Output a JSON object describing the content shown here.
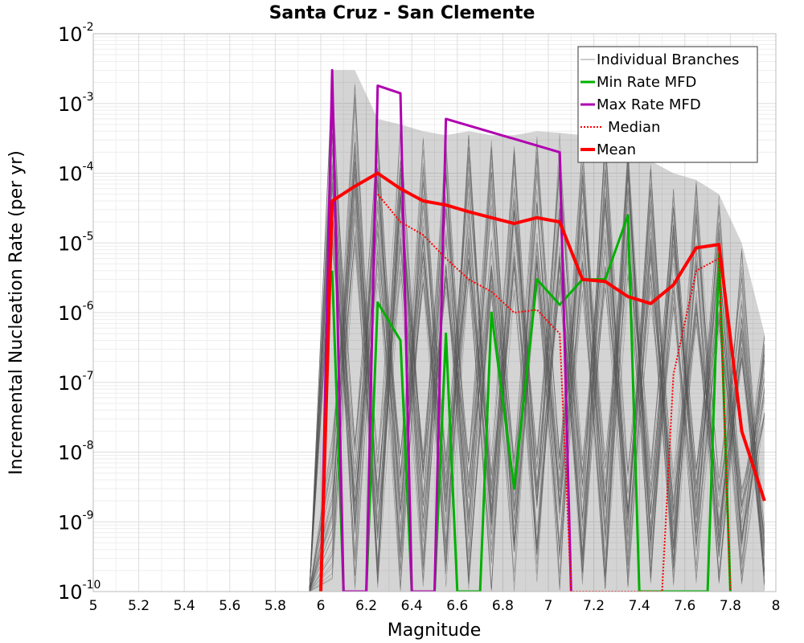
{
  "chart_data": {
    "type": "line",
    "title": "Santa Cruz - San Clemente",
    "xlabel": "Magnitude",
    "ylabel": "Incremental Nucleation Rate (per yr)",
    "xlim": [
      5,
      8
    ],
    "ylim": [
      1e-10,
      0.01
    ],
    "yscale": "log",
    "grid": true,
    "legend_position": "top-right",
    "x_ticks": [
      "5",
      "5.2",
      "5.4",
      "5.6",
      "5.8",
      "6",
      "6.2",
      "6.4",
      "6.6",
      "6.8",
      "7",
      "7.2",
      "7.4",
      "7.6",
      "7.8",
      "8"
    ],
    "y_ticks": [
      {
        "base": "10",
        "exp": "-10"
      },
      {
        "base": "10",
        "exp": "-9"
      },
      {
        "base": "10",
        "exp": "-8"
      },
      {
        "base": "10",
        "exp": "-7"
      },
      {
        "base": "10",
        "exp": "-6"
      },
      {
        "base": "10",
        "exp": "-5"
      },
      {
        "base": "10",
        "exp": "-4"
      },
      {
        "base": "10",
        "exp": "-3"
      },
      {
        "base": "10",
        "exp": "-2"
      }
    ],
    "series": [
      {
        "name": "Individual Branches",
        "color": "#555555",
        "style": "thin",
        "x": [
          5.95,
          6.05,
          6.15,
          6.25,
          6.35,
          6.45,
          6.55,
          6.65,
          6.75,
          6.85,
          6.95,
          7.05,
          7.15,
          7.25,
          7.35,
          7.45,
          7.55,
          7.65,
          7.75,
          7.85,
          7.95
        ],
        "y_min": [
          1e-10,
          1e-10,
          1e-10,
          1e-10,
          1e-10,
          1e-10,
          1e-10,
          1e-10,
          1e-10,
          1e-10,
          1e-10,
          1e-10,
          1e-10,
          1e-10,
          1e-10,
          1e-10,
          1e-10,
          1e-10,
          1e-10,
          1e-10,
          1e-10
        ],
        "y_max": [
          1e-10,
          0.003,
          0.003,
          0.0006,
          0.0005,
          0.0004,
          0.00035,
          0.0004,
          0.00035,
          0.00035,
          0.0004,
          0.00038,
          0.00035,
          0.00035,
          0.00025,
          0.00015,
          0.0001,
          8e-05,
          5e-05,
          1e-05,
          5e-07
        ]
      },
      {
        "name": "Min Rate MFD",
        "color": "#00b000",
        "x": [
          6.05,
          6.1,
          6.15,
          6.2,
          6.25,
          6.35,
          6.4,
          6.45,
          6.5,
          6.55,
          6.6,
          6.65,
          6.7,
          6.75,
          6.85,
          6.95,
          7.05,
          7.15,
          7.25,
          7.35,
          7.4,
          7.45,
          7.5,
          7.55,
          7.6,
          7.65,
          7.7,
          7.75,
          7.8
        ],
        "y": [
          4e-06,
          1e-10,
          1e-10,
          1e-10,
          1.4e-06,
          4e-07,
          1e-10,
          1e-10,
          1e-10,
          5e-07,
          1e-10,
          1e-10,
          1e-10,
          1e-06,
          3e-09,
          3e-06,
          1.3e-06,
          3e-06,
          3e-06,
          2.5e-05,
          1e-10,
          1e-10,
          1e-10,
          1e-10,
          1e-10,
          1e-10,
          1e-10,
          7e-06,
          1e-10
        ]
      },
      {
        "name": "Max Rate MFD",
        "color": "#b000b0",
        "x": [
          6.0,
          6.05,
          6.1,
          6.2,
          6.25,
          6.35,
          6.4,
          6.5,
          6.55,
          7.05,
          7.1
        ],
        "y": [
          1e-10,
          0.003,
          1e-10,
          1e-10,
          0.0018,
          0.0014,
          1e-10,
          1e-10,
          0.0006,
          0.0002,
          1e-10
        ]
      },
      {
        "name": "Median",
        "color": "#ff0000",
        "style": "dotted",
        "x": [
          6.25,
          6.35,
          6.45,
          6.55,
          6.65,
          6.75,
          6.85,
          6.95,
          7.05,
          7.1,
          7.15,
          7.2,
          7.25,
          7.3,
          7.35,
          7.4,
          7.45,
          7.5,
          7.55,
          7.65,
          7.75,
          7.8
        ],
        "y": [
          5e-05,
          2e-05,
          1.3e-05,
          6e-06,
          3e-06,
          2e-06,
          1e-06,
          1.1e-06,
          5e-07,
          1e-10,
          1e-10,
          1e-10,
          1e-10,
          1e-10,
          1e-10,
          1e-10,
          1e-10,
          1e-10,
          1.3e-07,
          4e-06,
          6e-06,
          1e-10
        ]
      },
      {
        "name": "Mean",
        "color": "#ff0000",
        "style": "thick",
        "x": [
          6.0,
          6.05,
          6.15,
          6.25,
          6.35,
          6.45,
          6.55,
          6.65,
          6.75,
          6.85,
          6.95,
          7.05,
          7.15,
          7.25,
          7.35,
          7.45,
          7.55,
          7.65,
          7.75,
          7.85,
          7.95
        ],
        "y": [
          1e-10,
          4e-05,
          6.5e-05,
          0.0001,
          6e-05,
          4e-05,
          3.5e-05,
          2.8e-05,
          2.3e-05,
          1.9e-05,
          2.3e-05,
          2e-05,
          3e-06,
          2.8e-06,
          1.7e-06,
          1.35e-06,
          2.5e-06,
          8.5e-06,
          9.5e-06,
          2e-08,
          2e-09
        ]
      }
    ]
  }
}
